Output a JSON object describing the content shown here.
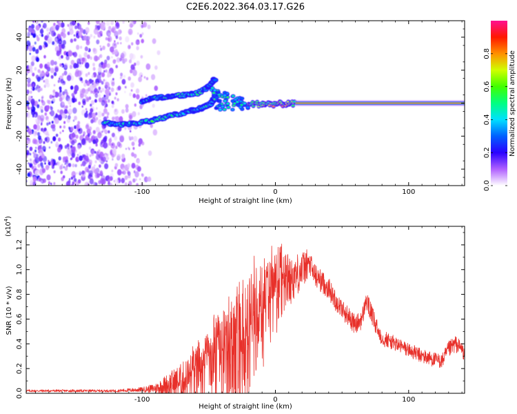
{
  "title": "C2E6.2022.364.03.17.G26",
  "colors": {
    "snr_line": "#e8302a",
    "frame": "#000000",
    "background": "#ffffff"
  },
  "chart_data": [
    {
      "type": "heatmap",
      "name": "spectrogram",
      "xlabel": "Height of straight line (km)",
      "ylabel": "Frequency (Hz)",
      "xlim": [
        -187,
        142
      ],
      "ylim": [
        -50,
        50
      ],
      "x_ticks": [
        -100,
        0,
        100
      ],
      "y_ticks": [
        -40,
        -20,
        0,
        20,
        40
      ],
      "x_tick_labels": [
        "-100",
        "0",
        "100"
      ],
      "y_tick_labels": [
        "-40",
        "-20",
        "0",
        "20",
        "40"
      ],
      "colorbar": {
        "label": "Normalized spectral amplitude",
        "range": [
          0,
          1
        ],
        "ticks": [
          0.0,
          0.2,
          0.4,
          0.6,
          0.8
        ],
        "tick_labels": [
          "0.0",
          "0.2",
          "0.4",
          "0.6",
          "0.8"
        ]
      },
      "features": [
        {
          "name": "carrier-line",
          "x": [
            15,
            142
          ],
          "freq_hz": 0,
          "amplitude": 0.9
        },
        {
          "name": "carrier-core",
          "x": [
            -20,
            15
          ],
          "freq_hz": [
            -2,
            1
          ],
          "amplitude": 0.7
        },
        {
          "name": "lower-branch",
          "points": [
            [
              -128,
              -12
            ],
            [
              -112,
              -13
            ],
            [
              -95,
              -11
            ],
            [
              -80,
              -8
            ],
            [
              -65,
              -5
            ],
            [
              -55,
              -3
            ],
            [
              -48,
              0
            ],
            [
              -44,
              6
            ]
          ],
          "amplitude": 0.5
        },
        {
          "name": "upper-branch",
          "points": [
            [
              -100,
              1
            ],
            [
              -92,
              3
            ],
            [
              -80,
              4
            ],
            [
              -68,
              5
            ],
            [
              -58,
              6
            ],
            [
              -50,
              10
            ],
            [
              -45,
              15
            ]
          ],
          "amplitude": 0.5
        },
        {
          "name": "middle-scatter",
          "x": [
            -48,
            -20
          ],
          "freq_hz": [
            -4,
            10
          ],
          "amplitude": 0.45
        },
        {
          "name": "noise-region",
          "x": [
            -187,
            -85
          ],
          "freq_hz": [
            -50,
            50
          ],
          "amplitude": 0.15
        }
      ]
    },
    {
      "type": "line",
      "name": "snr",
      "xlabel": "Height of straight line (km)",
      "ylabel": "SNR (10 * v/v)",
      "y_scale_label": "(x10",
      "y_scale_exponent": "4",
      "xlim": [
        -187,
        142
      ],
      "ylim": [
        0,
        1.35
      ],
      "x_ticks": [
        -100,
        0,
        100
      ],
      "y_ticks": [
        0.0,
        0.2,
        0.4,
        0.6,
        0.8,
        1.0,
        1.2
      ],
      "x_tick_labels": [
        "-100",
        "0",
        "100"
      ],
      "y_tick_labels": [
        "0.0",
        "0.2",
        "0.4",
        "0.6",
        "0.8",
        "1.0",
        "1.2"
      ],
      "envelope": {
        "x": [
          -187,
          -120,
          -100,
          -90,
          -80,
          -70,
          -60,
          -50,
          -45,
          -40,
          -30,
          -25,
          -20,
          -15,
          -10,
          -5,
          0,
          5,
          10,
          15,
          20,
          25,
          30,
          35,
          40,
          45,
          50,
          55,
          60,
          65,
          68,
          72,
          75,
          80,
          90,
          100,
          110,
          120,
          125,
          130,
          135,
          140,
          142
        ],
        "baseline": [
          0.02,
          0.02,
          0.03,
          0.04,
          0.07,
          0.1,
          0.15,
          0.2,
          0.22,
          0.25,
          0.3,
          0.3,
          0.45,
          0.6,
          0.6,
          0.7,
          0.8,
          0.85,
          0.9,
          0.95,
          1.0,
          1.05,
          0.95,
          0.9,
          0.85,
          0.75,
          0.68,
          0.62,
          0.55,
          0.6,
          0.75,
          0.65,
          0.55,
          0.45,
          0.4,
          0.35,
          0.3,
          0.27,
          0.26,
          0.35,
          0.4,
          0.36,
          0.3
        ],
        "noise": [
          0.01,
          0.01,
          0.02,
          0.04,
          0.1,
          0.15,
          0.22,
          0.28,
          0.4,
          0.4,
          0.5,
          0.5,
          0.5,
          0.45,
          0.45,
          0.4,
          0.35,
          0.3,
          0.2,
          0.18,
          0.15,
          0.12,
          0.1,
          0.09,
          0.09,
          0.08,
          0.08,
          0.08,
          0.08,
          0.08,
          0.08,
          0.08,
          0.08,
          0.07,
          0.06,
          0.06,
          0.06,
          0.06,
          0.06,
          0.07,
          0.07,
          0.06,
          0.05
        ]
      }
    }
  ]
}
